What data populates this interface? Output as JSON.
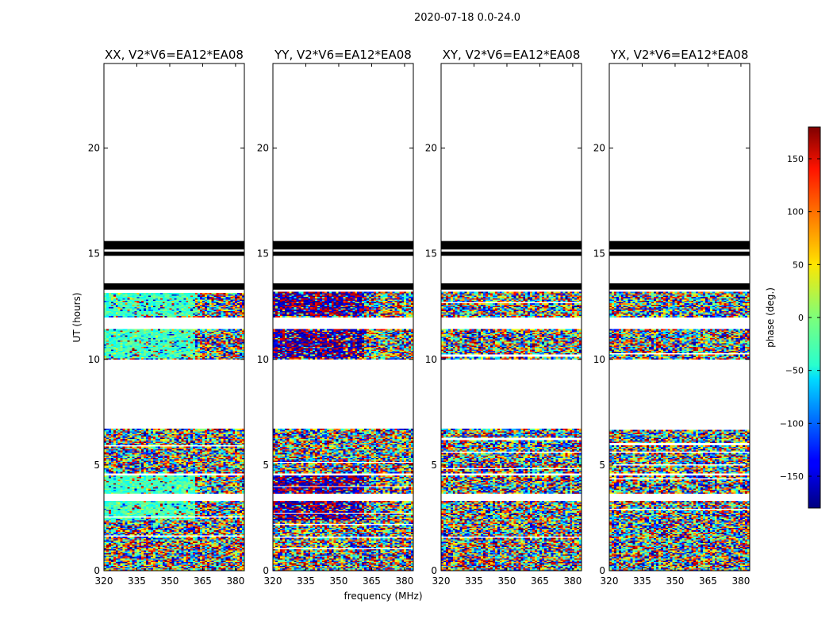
{
  "figure": {
    "suptitle": "2020-07-18 0.0-24.0",
    "xlabel": "frequency (MHz)",
    "ylabel": "UT (hours)"
  },
  "chart_data": {
    "type": "heatmap",
    "panels": [
      {
        "title": "XX, V2*V6=EA12*EA08",
        "pol": "XX",
        "profile": "xx"
      },
      {
        "title": "YY, V2*V6=EA12*EA08",
        "pol": "YY",
        "profile": "yy"
      },
      {
        "title": "XY, V2*V6=EA12*EA08",
        "pol": "XY",
        "profile": "cross"
      },
      {
        "title": "YX, V2*V6=EA12*EA08",
        "pol": "YX",
        "profile": "cross"
      }
    ],
    "x_ticks": [
      320,
      335,
      350,
      365,
      380
    ],
    "xlim": [
      320,
      384
    ],
    "y_ticks": [
      0,
      5,
      10,
      15,
      20
    ],
    "ylim": [
      0,
      24
    ],
    "data_hour_ranges": [
      [
        0.0,
        6.7
      ],
      [
        10.0,
        11.4
      ],
      [
        12.0,
        13.2
      ]
    ],
    "flagged_hour_ranges": [
      [
        13.3,
        13.6
      ],
      [
        14.9,
        15.1
      ],
      [
        15.2,
        15.6
      ]
    ],
    "gap_hour_ranges": [
      [
        3.3,
        3.65
      ],
      [
        4.5,
        4.6
      ],
      [
        11.4,
        12.0
      ]
    ],
    "colorbar": {
      "label": "phase (deg.)",
      "range": [
        -180,
        180
      ],
      "ticks": [
        150,
        100,
        50,
        0,
        -50,
        -100,
        -150
      ],
      "tick_labels": [
        "150",
        "100",
        "50",
        "0",
        "−50",
        "−100",
        "−150"
      ],
      "colormap": "jet"
    }
  }
}
